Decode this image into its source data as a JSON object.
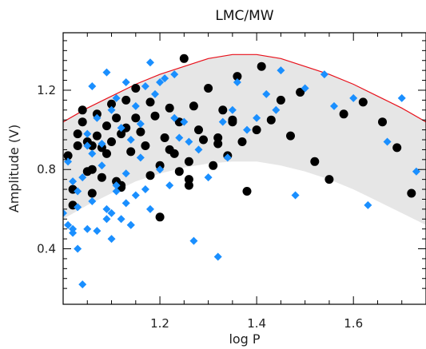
{
  "chart_data": {
    "type": "scatter",
    "title": "LMC/MW",
    "xlabel": "log P",
    "ylabel": "Amplitude (V)",
    "xlim": [
      1.0,
      1.75
    ],
    "ylim": [
      0.12,
      1.49
    ],
    "xticks": [
      1.2,
      1.4,
      1.6
    ],
    "yticks": [
      0.4,
      0.8,
      1.2
    ],
    "tick_labels": {
      "x": [
        "1.2",
        "1.4",
        "1.6"
      ],
      "y": [
        "0.4",
        "0.8",
        "1.2"
      ]
    },
    "grid": false,
    "colors": {
      "series_black": "#000000",
      "series_blue": "#1a8fff",
      "envelope_upper": "#e8101a",
      "band_fill": "#e6e6e6"
    },
    "envelope": {
      "x": [
        1.0,
        1.05,
        1.1,
        1.15,
        1.2,
        1.25,
        1.3,
        1.35,
        1.4,
        1.45,
        1.5,
        1.55,
        1.6,
        1.65,
        1.7,
        1.75
      ],
      "upper": [
        1.04,
        1.11,
        1.17,
        1.23,
        1.28,
        1.32,
        1.36,
        1.38,
        1.38,
        1.36,
        1.32,
        1.28,
        1.23,
        1.17,
        1.11,
        1.04
      ],
      "lower": [
        0.55,
        0.62,
        0.68,
        0.74,
        0.78,
        0.81,
        0.83,
        0.84,
        0.84,
        0.82,
        0.79,
        0.75,
        0.7,
        0.64,
        0.58,
        0.52
      ]
    },
    "series": [
      {
        "marker": "circle",
        "color": "#000000",
        "x": [
          1.01,
          1.02,
          1.02,
          1.03,
          1.03,
          1.04,
          1.04,
          1.05,
          1.05,
          1.06,
          1.06,
          1.07,
          1.07,
          1.08,
          1.08,
          1.09,
          1.09,
          1.1,
          1.1,
          1.11,
          1.11,
          1.12,
          1.12,
          1.13,
          1.13,
          1.14,
          1.15,
          1.16,
          1.17,
          1.18,
          1.19,
          1.2,
          1.21,
          1.22,
          1.23,
          1.24,
          1.25,
          1.26,
          1.27,
          1.28,
          1.29,
          1.3,
          1.31,
          1.32,
          1.33,
          1.34,
          1.35,
          1.36,
          1.37,
          1.38,
          1.4,
          1.41,
          1.43,
          1.45,
          1.47,
          1.49,
          1.52,
          1.55,
          1.58,
          1.62,
          1.66,
          1.69,
          1.72,
          1.26,
          1.2,
          1.22,
          1.06,
          1.12,
          1.15,
          1.18,
          1.24,
          1.26,
          1.32,
          1.35
        ],
        "y": [
          0.87,
          0.7,
          0.62,
          0.92,
          0.98,
          1.04,
          1.1,
          0.79,
          0.94,
          0.68,
          0.92,
          1.08,
          0.97,
          0.91,
          0.76,
          1.02,
          0.88,
          1.13,
          0.94,
          1.06,
          0.74,
          0.98,
          0.71,
          1.15,
          1.01,
          0.89,
          1.06,
          0.99,
          0.92,
          1.14,
          1.07,
          0.56,
          0.96,
          1.11,
          0.88,
          1.04,
          1.36,
          0.84,
          1.12,
          1.0,
          0.95,
          1.21,
          0.82,
          0.96,
          1.1,
          0.87,
          1.05,
          1.27,
          0.94,
          0.69,
          1.0,
          1.32,
          1.05,
          1.15,
          0.97,
          1.19,
          0.84,
          0.75,
          1.08,
          1.14,
          1.04,
          0.91,
          0.68,
          0.75,
          0.82,
          0.9,
          0.8,
          0.72,
          1.21,
          0.77,
          0.79,
          0.72,
          0.93,
          1.04
        ]
      },
      {
        "marker": "diamond",
        "color": "#1a8fff",
        "x": [
          1.0,
          1.01,
          1.01,
          1.02,
          1.02,
          1.03,
          1.03,
          1.04,
          1.04,
          1.05,
          1.05,
          1.06,
          1.06,
          1.07,
          1.07,
          1.08,
          1.08,
          1.09,
          1.09,
          1.1,
          1.1,
          1.11,
          1.11,
          1.12,
          1.12,
          1.13,
          1.13,
          1.14,
          1.14,
          1.15,
          1.15,
          1.16,
          1.16,
          1.17,
          1.17,
          1.18,
          1.19,
          1.2,
          1.21,
          1.22,
          1.23,
          1.24,
          1.25,
          1.27,
          1.28,
          1.3,
          1.32,
          1.33,
          1.34,
          1.35,
          1.36,
          1.38,
          1.4,
          1.42,
          1.44,
          1.45,
          1.48,
          1.5,
          1.54,
          1.56,
          1.6,
          1.63,
          1.67,
          1.7,
          1.73,
          1.09,
          1.13,
          1.11,
          1.2,
          1.23,
          1.14,
          1.26,
          1.05,
          1.03,
          1.02,
          1.06,
          1.1,
          1.18
        ],
        "y": [
          0.58,
          0.52,
          0.84,
          0.48,
          0.74,
          0.4,
          0.69,
          0.76,
          0.22,
          0.98,
          0.5,
          0.88,
          0.64,
          1.06,
          0.49,
          0.82,
          0.93,
          1.29,
          0.6,
          1.1,
          0.45,
          0.72,
          1.16,
          0.55,
          1.01,
          0.78,
          1.24,
          0.52,
          0.95,
          1.12,
          0.67,
          0.86,
          1.03,
          0.7,
          1.22,
          1.34,
          1.18,
          0.8,
          1.26,
          0.72,
          1.06,
          0.96,
          1.04,
          0.44,
          0.9,
          0.76,
          0.36,
          1.04,
          0.86,
          1.1,
          1.24,
          1.0,
          1.06,
          1.18,
          1.1,
          1.3,
          0.67,
          1.21,
          1.28,
          1.12,
          1.16,
          0.62,
          0.94,
          1.16,
          0.79,
          0.55,
          0.63,
          0.69,
          1.24,
          1.28,
          0.52,
          0.94,
          0.92,
          0.61,
          0.5,
          1.22,
          0.58,
          0.6
        ]
      }
    ]
  }
}
